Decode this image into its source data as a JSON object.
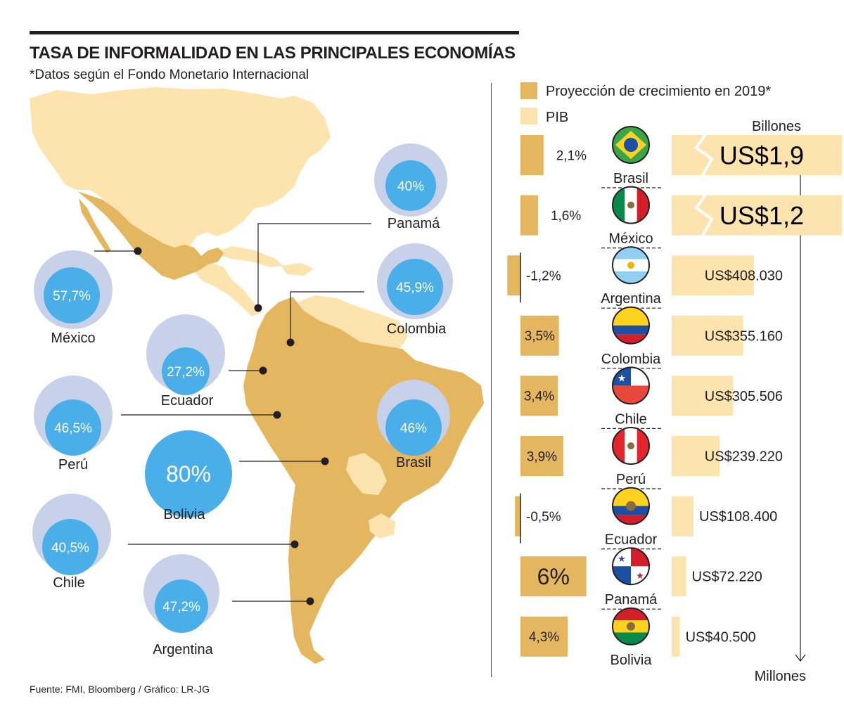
{
  "header": {
    "title": "TASA DE INFORMALIDAD EN LAS PRINCIPALES ECONOMÍAS",
    "subtitle": "*Datos según el Fondo Monetario Internacional"
  },
  "footer": {
    "source": "Fuente: FMI, Bloomberg / Gráfico: LR-JG"
  },
  "colors": {
    "growth": "#e3b65f",
    "pib": "#fde3ad",
    "land_main": "#e3b65f",
    "land_other": "#fde3ad",
    "circle_outer": "#c7d2ea",
    "circle_inner": "#4aaee8",
    "text": "#231f20"
  },
  "chart_data": [
    {
      "type": "bubble-map",
      "title": "Tasa de informalidad",
      "unit": "%",
      "series": [
        {
          "country": "Panamá",
          "value": 40,
          "label": "40%"
        },
        {
          "country": "México",
          "value": 57.7,
          "label": "57,7%"
        },
        {
          "country": "Colombia",
          "value": 45.9,
          "label": "45,9%"
        },
        {
          "country": "Ecuador",
          "value": 27.2,
          "label": "27,2%"
        },
        {
          "country": "Perú",
          "value": 46.5,
          "label": "46,5%"
        },
        {
          "country": "Brasil",
          "value": 46,
          "label": "46%"
        },
        {
          "country": "Bolivia",
          "value": 80,
          "label": "80%"
        },
        {
          "country": "Chile",
          "value": 40.5,
          "label": "40,5%"
        },
        {
          "country": "Argentina",
          "value": 47.2,
          "label": "47,2%"
        }
      ]
    },
    {
      "type": "bar",
      "legend": [
        "Proyección de crecimiento en 2019*",
        "PIB"
      ],
      "units_top": "Billones",
      "units_bottom": "Millones",
      "rows": [
        {
          "country": "Brasil",
          "growth": 2.1,
          "growth_label": "2,1%",
          "pib_label": "US$1,9",
          "pib_value": 1900000,
          "broken": true
        },
        {
          "country": "México",
          "growth": 1.6,
          "growth_label": "1,6%",
          "pib_label": "US$1,2",
          "pib_value": 1200000,
          "broken": true
        },
        {
          "country": "Argentina",
          "growth": -1.2,
          "growth_label": "-1,2%",
          "pib_label": "US$408.030",
          "pib_value": 408030,
          "broken": false
        },
        {
          "country": "Colombia",
          "growth": 3.5,
          "growth_label": "3,5%",
          "pib_label": "US$355.160",
          "pib_value": 355160,
          "broken": false
        },
        {
          "country": "Chile",
          "growth": 3.4,
          "growth_label": "3,4%",
          "pib_label": "US$305.506",
          "pib_value": 305506,
          "broken": false
        },
        {
          "country": "Perú",
          "growth": 3.9,
          "growth_label": "3,9%",
          "pib_label": "US$239.220",
          "pib_value": 239220,
          "broken": false
        },
        {
          "country": "Ecuador",
          "growth": -0.5,
          "growth_label": "-0,5%",
          "pib_label": "US$108.400",
          "pib_value": 108400,
          "broken": false
        },
        {
          "country": "Panamá",
          "growth": 6,
          "growth_label": "6%",
          "pib_label": "US$72.220",
          "pib_value": 72220,
          "broken": false
        },
        {
          "country": "Bolivia",
          "growth": 4.3,
          "growth_label": "4,3%",
          "pib_label": "US$40.500",
          "pib_value": 40500,
          "broken": false
        }
      ]
    }
  ]
}
